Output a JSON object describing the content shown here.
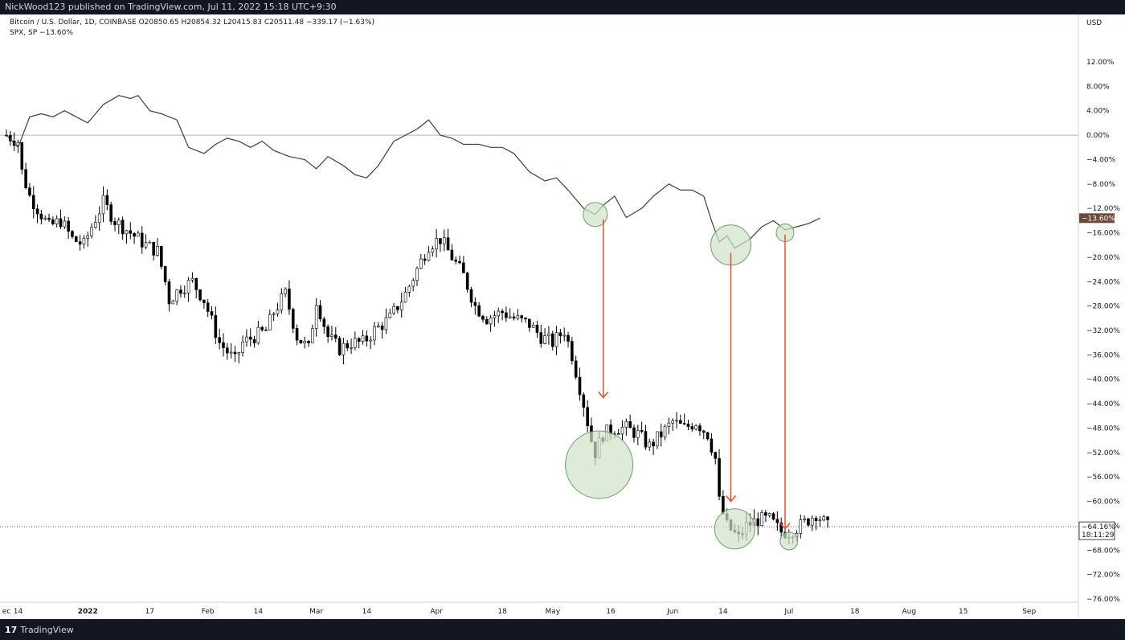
{
  "header": {
    "published": "NickWood123 published on TradingView.com, Jul 11, 2022 15:18 UTC+9:30"
  },
  "legend": {
    "symbol_line": "Bitcoin / U.S. Dollar, 1D, COINBASE  O20850.65  H20854.32  L20415.83  C20511.48  −339.17 (−1.63%)",
    "compare_line": "SPX, SP  −13.60%"
  },
  "footer": {
    "brand": "TradingView"
  },
  "colors": {
    "up": "#ffffff",
    "down": "#000000",
    "wick": "#000000",
    "spx_line": "#4a3b2c",
    "arrow": "#e0502f",
    "circle_fill": "#cfe3c8",
    "circle_stroke": "#6f9d6a",
    "spx_badge": "#6b4a3a",
    "btc_badge": "#ffffff",
    "grid_zero": "#b2b5be"
  },
  "chart_data": {
    "type": "line",
    "title": "Bitcoin / U.S. Dollar, 1D, COINBASE",
    "xlabel": "",
    "ylabel": "USD",
    "y_unit": "% change",
    "ylim": [
      -77,
      16
    ],
    "x_range": [
      "2021-12-11",
      "2022-09-05"
    ],
    "x_tick_labels": [
      "ec",
      "14",
      "2022",
      "17",
      "Feb",
      "14",
      "Mar",
      "14",
      "Apr",
      "18",
      "May",
      "16",
      "Jun",
      "14",
      "Jul",
      "18",
      "Aug",
      "15",
      "Sep"
    ],
    "x_tick_dates": [
      "2021-12-11",
      "2021-12-14",
      "2022-01-01",
      "2022-01-17",
      "2022-02-01",
      "2022-02-14",
      "2022-03-01",
      "2022-03-14",
      "2022-04-01",
      "2022-04-18",
      "2022-05-01",
      "2022-05-16",
      "2022-06-01",
      "2022-06-14",
      "2022-07-01",
      "2022-07-18",
      "2022-08-01",
      "2022-08-15",
      "2022-09-01"
    ],
    "y_ticks": [
      12,
      8,
      4,
      0,
      -4,
      -8,
      -12,
      -16,
      -20,
      -24,
      -28,
      -32,
      -36,
      -40,
      -44,
      -48,
      -52,
      -56,
      -60,
      -64,
      -68,
      -72,
      -76
    ],
    "y_tick_labels": [
      "12.00%",
      "8.00%",
      "4.00%",
      "0.00%",
      "−4.00%",
      "−8.00%",
      "−12.00%",
      "−16.00%",
      "−20.00%",
      "−24.00%",
      "−28.00%",
      "−32.00%",
      "−36.00%",
      "−40.00%",
      "−44.00%",
      "−48.00%",
      "−52.00%",
      "−56.00%",
      "−60.00%",
      "−64.00%",
      "−68.00%",
      "−72.00%",
      "−76.00%"
    ],
    "series": [
      {
        "name": "Bitcoin / U.S. Dollar",
        "kind": "candlestick",
        "btc_close_path": [
          [
            "2021-12-11",
            0
          ],
          [
            "2021-12-14",
            -1
          ],
          [
            "2021-12-15",
            -6
          ],
          [
            "2021-12-17",
            -10
          ],
          [
            "2021-12-19",
            -12
          ],
          [
            "2021-12-22",
            -15
          ],
          [
            "2021-12-25",
            -14
          ],
          [
            "2021-12-28",
            -17
          ],
          [
            "2021-12-31",
            -18
          ],
          [
            "2022-01-02",
            -15
          ],
          [
            "2022-01-05",
            -11
          ],
          [
            "2022-01-08",
            -14
          ],
          [
            "2022-01-12",
            -16
          ],
          [
            "2022-01-16",
            -18
          ],
          [
            "2022-01-19",
            -19
          ],
          [
            "2022-01-21",
            -24
          ],
          [
            "2022-01-22",
            -27
          ],
          [
            "2022-01-25",
            -25
          ],
          [
            "2022-01-28",
            -24
          ],
          [
            "2022-01-31",
            -27
          ],
          [
            "2022-02-04",
            -34
          ],
          [
            "2022-02-08",
            -37
          ],
          [
            "2022-02-10",
            -34
          ],
          [
            "2022-02-13",
            -33
          ],
          [
            "2022-02-16",
            -32
          ],
          [
            "2022-02-18",
            -29
          ],
          [
            "2022-02-21",
            -26
          ],
          [
            "2022-02-24",
            -33
          ],
          [
            "2022-02-27",
            -35
          ],
          [
            "2022-03-01",
            -27
          ],
          [
            "2022-03-04",
            -33
          ],
          [
            "2022-03-07",
            -35
          ],
          [
            "2022-03-10",
            -34
          ],
          [
            "2022-03-13",
            -34
          ],
          [
            "2022-03-16",
            -32
          ],
          [
            "2022-03-20",
            -30
          ],
          [
            "2022-03-24",
            -26
          ],
          [
            "2022-03-27",
            -22
          ],
          [
            "2022-03-30",
            -18
          ],
          [
            "2022-04-02",
            -17
          ],
          [
            "2022-04-05",
            -20
          ],
          [
            "2022-04-08",
            -23
          ],
          [
            "2022-04-11",
            -28
          ],
          [
            "2022-04-14",
            -30
          ],
          [
            "2022-04-18",
            -29
          ],
          [
            "2022-04-21",
            -30
          ],
          [
            "2022-04-25",
            -31
          ],
          [
            "2022-04-28",
            -33
          ],
          [
            "2022-05-01",
            -34
          ],
          [
            "2022-05-04",
            -32
          ],
          [
            "2022-05-06",
            -36
          ],
          [
            "2022-05-09",
            -44
          ],
          [
            "2022-05-11",
            -50
          ],
          [
            "2022-05-12",
            -52
          ],
          [
            "2022-05-14",
            -49
          ],
          [
            "2022-05-17",
            -48
          ],
          [
            "2022-05-20",
            -48
          ],
          [
            "2022-05-23",
            -49
          ],
          [
            "2022-05-26",
            -51
          ],
          [
            "2022-05-29",
            -49
          ],
          [
            "2022-06-01",
            -47
          ],
          [
            "2022-06-04",
            -48
          ],
          [
            "2022-06-07",
            -47
          ],
          [
            "2022-06-10",
            -49
          ],
          [
            "2022-06-12",
            -53
          ],
          [
            "2022-06-13",
            -60
          ],
          [
            "2022-06-15",
            -64
          ],
          [
            "2022-06-18",
            -66
          ],
          [
            "2022-06-20",
            -64
          ],
          [
            "2022-06-23",
            -63
          ],
          [
            "2022-06-26",
            -63
          ],
          [
            "2022-06-29",
            -65
          ],
          [
            "2022-07-01",
            -65
          ],
          [
            "2022-07-04",
            -64
          ],
          [
            "2022-07-06",
            -63
          ],
          [
            "2022-07-08",
            -62
          ],
          [
            "2022-07-11",
            -64.16
          ]
        ]
      },
      {
        "name": "SPX, SP",
        "kind": "line",
        "points": [
          [
            "2021-12-11",
            0
          ],
          [
            "2021-12-14",
            -2
          ],
          [
            "2021-12-17",
            3
          ],
          [
            "2021-12-20",
            3.5
          ],
          [
            "2021-12-23",
            3
          ],
          [
            "2021-12-26",
            4
          ],
          [
            "2021-12-29",
            3
          ],
          [
            "2022-01-01",
            2
          ],
          [
            "2022-01-05",
            5
          ],
          [
            "2022-01-09",
            6.5
          ],
          [
            "2022-01-12",
            6
          ],
          [
            "2022-01-14",
            6.5
          ],
          [
            "2022-01-17",
            4
          ],
          [
            "2022-01-20",
            3.5
          ],
          [
            "2022-01-24",
            2.5
          ],
          [
            "2022-01-27",
            -2
          ],
          [
            "2022-01-31",
            -3
          ],
          [
            "2022-02-03",
            -1.5
          ],
          [
            "2022-02-06",
            -0.5
          ],
          [
            "2022-02-09",
            -1
          ],
          [
            "2022-02-12",
            -2
          ],
          [
            "2022-02-15",
            -1
          ],
          [
            "2022-02-18",
            -2.5
          ],
          [
            "2022-02-22",
            -3.5
          ],
          [
            "2022-02-26",
            -4
          ],
          [
            "2022-03-01",
            -5.5
          ],
          [
            "2022-03-04",
            -3.5
          ],
          [
            "2022-03-08",
            -5
          ],
          [
            "2022-03-11",
            -6.5
          ],
          [
            "2022-03-14",
            -7
          ],
          [
            "2022-03-17",
            -5
          ],
          [
            "2022-03-21",
            -1
          ],
          [
            "2022-03-24",
            0
          ],
          [
            "2022-03-27",
            1
          ],
          [
            "2022-03-30",
            2.5
          ],
          [
            "2022-04-02",
            0
          ],
          [
            "2022-04-05",
            -0.5
          ],
          [
            "2022-04-08",
            -1.5
          ],
          [
            "2022-04-12",
            -1.5
          ],
          [
            "2022-04-15",
            -2
          ],
          [
            "2022-04-18",
            -2
          ],
          [
            "2022-04-21",
            -3
          ],
          [
            "2022-04-25",
            -6
          ],
          [
            "2022-04-29",
            -7.5
          ],
          [
            "2022-05-02",
            -7
          ],
          [
            "2022-05-05",
            -9
          ],
          [
            "2022-05-09",
            -12
          ],
          [
            "2022-05-12",
            -13
          ],
          [
            "2022-05-14",
            -11.5
          ],
          [
            "2022-05-17",
            -10
          ],
          [
            "2022-05-20",
            -13.5
          ],
          [
            "2022-05-24",
            -12
          ],
          [
            "2022-05-27",
            -10
          ],
          [
            "2022-05-31",
            -8
          ],
          [
            "2022-06-03",
            -9
          ],
          [
            "2022-06-06",
            -9
          ],
          [
            "2022-06-09",
            -10
          ],
          [
            "2022-06-11",
            -14
          ],
          [
            "2022-06-13",
            -17.5
          ],
          [
            "2022-06-15",
            -16.5
          ],
          [
            "2022-06-17",
            -18.5
          ],
          [
            "2022-06-21",
            -17
          ],
          [
            "2022-06-24",
            -15
          ],
          [
            "2022-06-27",
            -14
          ],
          [
            "2022-06-30",
            -15.5
          ],
          [
            "2022-07-03",
            -15
          ],
          [
            "2022-07-06",
            -14.5
          ],
          [
            "2022-07-09",
            -13.6
          ]
        ]
      }
    ],
    "last_values": {
      "spx_label": "−13.60%",
      "btc_label": "−64.16%",
      "btc_countdown": "18:11:29"
    },
    "annotations": {
      "spx_lows_circled": [
        "2022-05-12",
        "2022-06-16",
        "2022-06-30"
      ],
      "btc_lows_circled": [
        "2022-05-12",
        "2022-06-17",
        "2022-07-01"
      ],
      "arrows": [
        {
          "from": "2022-05-12",
          "spx": -13,
          "btc": -43
        },
        {
          "from": "2022-06-16",
          "spx": -18.5,
          "btc": -60
        },
        {
          "from": "2022-06-30",
          "spx": -15.5,
          "btc": -64.5
        }
      ]
    }
  }
}
